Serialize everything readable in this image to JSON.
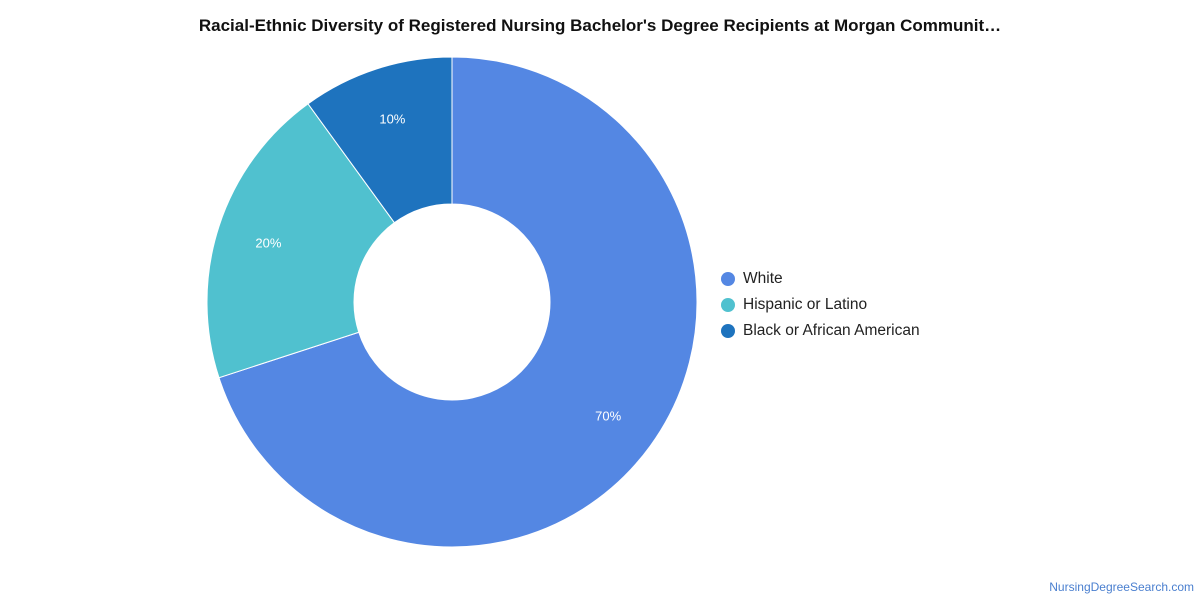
{
  "chart_data": {
    "type": "pie",
    "title": "Racial-Ethnic Diversity of Registered Nursing Bachelor's Degree Recipients at Morgan Communit…",
    "donut": true,
    "categories": [
      "White",
      "Hispanic or Latino",
      "Black or African American"
    ],
    "values": [
      70,
      20,
      10
    ],
    "labels": [
      "70%",
      "20%",
      "10%"
    ],
    "colors": [
      "#5487e3",
      "#50c1cf",
      "#1e73be"
    ],
    "legend_position": "right"
  },
  "footer": {
    "source": "NursingDegreeSearch.com"
  }
}
